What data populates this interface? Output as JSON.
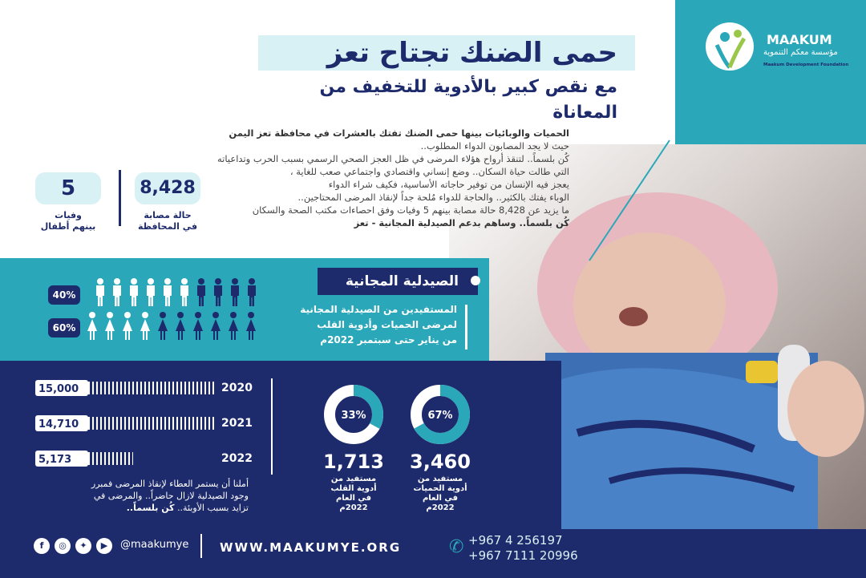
{
  "brand": {
    "name": "MAAKUM",
    "arabic_name": "مؤسسة معكم التنموية",
    "subtitle": "Maakum Development Foundation"
  },
  "header": {
    "title": "حمى الضنك تجتاح تعز",
    "subtitle": "مع نقص كبير بالأدوية للتخفيف من المعاناة"
  },
  "intro": {
    "lines": [
      "الحميات والوبائيات بينها حمى الضنك تفتك بالعشرات في محافظة تعز اليمن",
      "حيث لا يجد المصابون الدواء المطلوب..",
      "كُن بلسماً.. لتنقذ أرواح هؤلاء المرضى في ظل العجز الصحي الرسمي بسبب الحرب وتداعياته",
      "التي طالت حياة السكان.. وضع إنساني واقتصادي واجتماعي صعب للغاية ،",
      "يعجز فيه الإنسان من توفير حاجاته الأساسية، فكيف شراء الدواء",
      "الوباء يفتك بالكثير.. والحاجة للدواء مُلحة جداً لإنقاذ المرضى المحتاجين..",
      "ما يزيد عن 8,428 حالة مصابة بينهم 5 وفيات وفق احصاءات مكتب الصحة والسكان",
      "كُن بلسماً.. وساهم بدعم الصيدلية المجانية - تعز"
    ]
  },
  "stats": {
    "cases_value": "8,428",
    "cases_label_1": "حالة مصابة",
    "cases_label_2": "في المحافظة",
    "deaths_value": "5",
    "deaths_label_1": "وفيات",
    "deaths_label_2": "بينهم أطفال"
  },
  "pharmacy": {
    "heading": "الصيدلية المجانية",
    "desc_1": "المستفيدين من الصيدلية المجانية",
    "desc_2": "لمرضى الحميات وأدوية القلب",
    "desc_3": "من يناير حتى سبتمبر 2022م",
    "male_pct": "40%",
    "female_pct": "60%",
    "male_fraction": 0.4,
    "female_fraction": 0.6
  },
  "years": [
    {
      "year": "2020",
      "value": "15,000",
      "fill": 1.0
    },
    {
      "year": "2021",
      "value": "14,710",
      "fill": 0.98
    },
    {
      "year": "2022",
      "value": "5,173",
      "fill": 0.35
    }
  ],
  "closing": {
    "line1": "أملنا أن يستمر العطاء لإنقاذ المرضى فمبرر",
    "line2": "وجود الصيدلية لازال حاضراً.. والمرضى في",
    "line3": "تزايد بسبب الأوبئة..",
    "line3_bold": "كُن بلسماً.."
  },
  "rings": [
    {
      "pct": "67%",
      "fraction": 0.67,
      "value": "3,460",
      "l1": "مستفيد من",
      "l2": "أدوية الحميات",
      "l3": "في العام",
      "l4": "2022م"
    },
    {
      "pct": "33%",
      "fraction": 0.33,
      "value": "1,713",
      "l1": "مستفيد من",
      "l2": "أدوية القلب",
      "l3": "في العام",
      "l4": "2022م"
    }
  ],
  "footer": {
    "handle": "@maakumye",
    "website": "WWW.MAAKUMYE.ORG",
    "phone1": "+967 4 256197",
    "phone2": "+967 7111 20996",
    "social_icons": [
      "facebook-icon",
      "instagram-icon",
      "twitter-icon",
      "youtube-icon"
    ]
  },
  "colors": {
    "navy": "#1d2a6b",
    "teal": "#2aa7b8",
    "light": "#d8f1f5"
  }
}
